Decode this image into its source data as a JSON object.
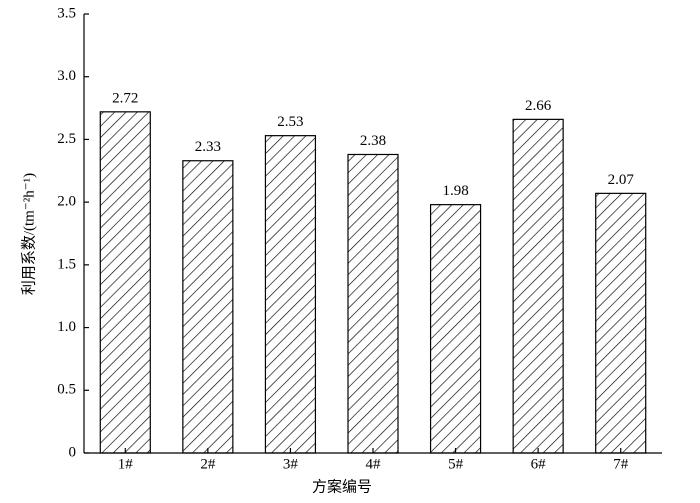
{
  "chart_data": {
    "type": "bar",
    "categories": [
      "1#",
      "2#",
      "3#",
      "4#",
      "5#",
      "6#",
      "7#"
    ],
    "values": [
      2.72,
      2.33,
      2.53,
      2.38,
      1.98,
      2.66,
      2.07
    ],
    "color": "#000000",
    "ylim": [
      0,
      3.5
    ],
    "yticks": [
      0,
      0.5,
      {
        "value": 1,
        "label": "1.0"
      },
      1.5,
      {
        "value": 2,
        "label": "2.0"
      },
      2.5,
      {
        "value": 3,
        "label": "3.0"
      },
      3.5
    ],
    "ylabel": "利用系数/(tm⁻²h⁻¹)",
    "xlabel": "方案编号"
  }
}
